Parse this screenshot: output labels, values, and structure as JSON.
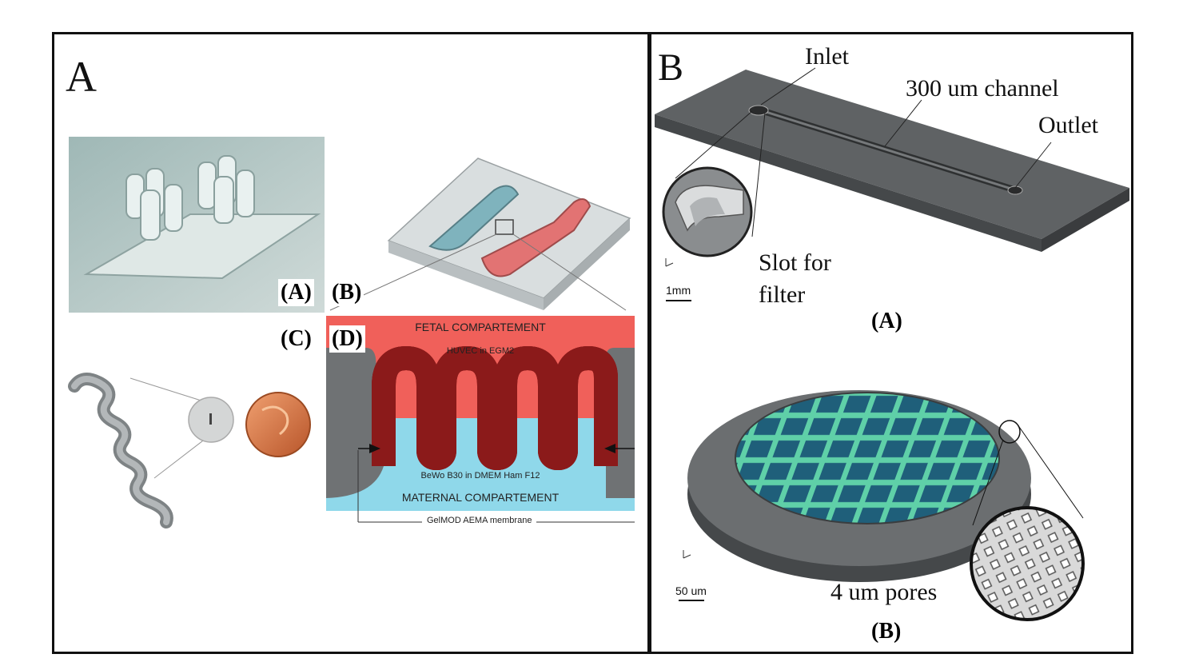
{
  "panel_a": {
    "letter": "A",
    "sublabels": {
      "a": "(A)",
      "b": "(B)",
      "c": "(C)",
      "d": "(D)"
    },
    "cross_section": {
      "fetal": "FETAL COMPARTEMENT",
      "huvec": "HUVEC in EGM2",
      "bewo": "BeWo B30 in DMEM Ham F12",
      "maternal": "MATERNAL COMPARTEMENT",
      "membrane": "GelMOD AEMA membrane"
    },
    "colors": {
      "fetal": "#f0605a",
      "maternal": "#8fd8ea",
      "membrane": "#9a9a9a",
      "cells": "#8b1a1a"
    }
  },
  "panel_b": {
    "letter": "B",
    "callouts": {
      "inlet": "Inlet",
      "channel": "300 um channel",
      "outlet": "Outlet",
      "slot_line1": "Slot for",
      "slot_line2": "filter",
      "pores": "4 um pores"
    },
    "scalebars": {
      "top": "1mm",
      "bottom": "50 um"
    },
    "sublabels": {
      "a": "(A)",
      "b": "(B)"
    },
    "colors": {
      "chip": "#5f6264",
      "filter_mesh": "#1f6f86",
      "grid": "#5fd0a8"
    }
  }
}
